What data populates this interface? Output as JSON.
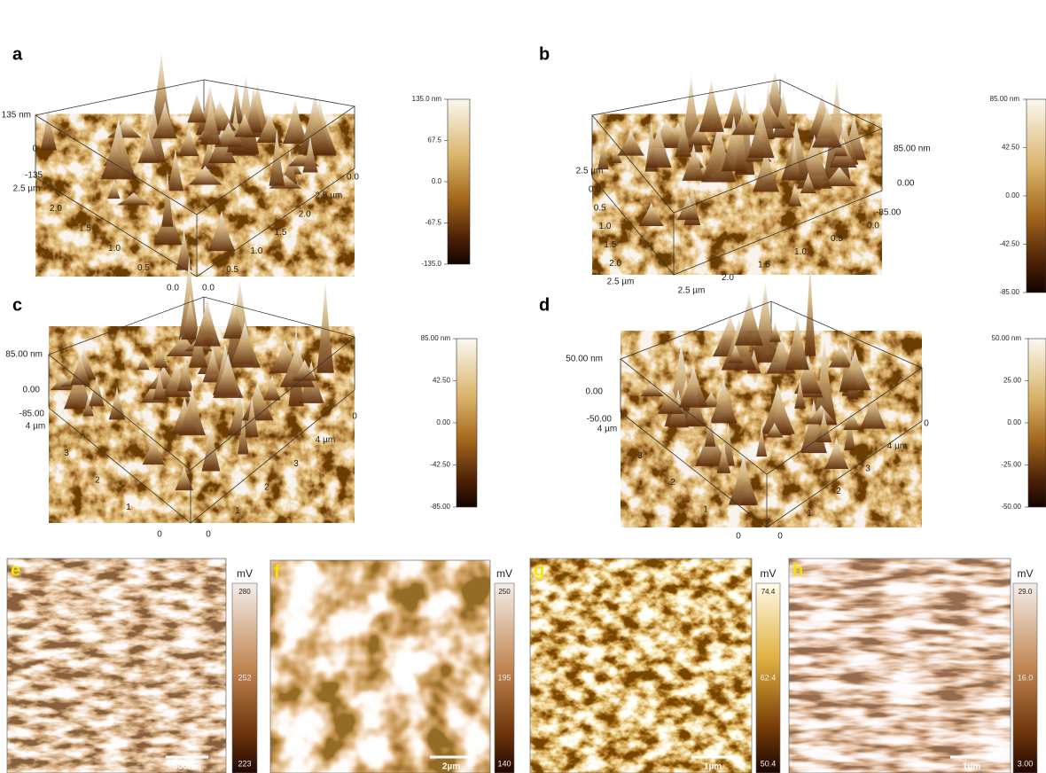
{
  "panels": [
    {
      "label": "a",
      "z_ticks": [
        "135 nm",
        "0",
        "-135"
      ],
      "left_ticks": [
        "2.5 µm",
        "2.0",
        "1.5",
        "1.0",
        "0.5",
        "0.0"
      ],
      "right_ticks": [
        "0.0",
        "0.5",
        "1.0",
        "1.5",
        "2.0",
        "2.5 µm",
        "0.0"
      ],
      "colorbar": [
        "135.0 nm",
        "67.5",
        "0.0",
        "-67.5",
        "-135.0"
      ]
    },
    {
      "label": "b",
      "z_ticks": [
        "85.00 nm",
        "0.00",
        "-85.00"
      ],
      "left_ticks": [
        "2.5 µm",
        "0.0",
        "0.5",
        "1.0",
        "1.5",
        "2.0",
        "2.5 µm"
      ],
      "right_ticks": [
        "2.5 µm",
        "2.0",
        "1.5",
        "1.0",
        "0.5",
        "0.0"
      ],
      "colorbar": [
        "85.00 nm",
        "42.50",
        "0.00",
        "-42.50",
        "-85.00"
      ]
    },
    {
      "label": "c",
      "z_ticks": [
        "85.00 nm",
        "0.00",
        "-85.00"
      ],
      "left_ticks": [
        "4 µm",
        "3",
        "2",
        "1",
        "0"
      ],
      "right_ticks": [
        "0",
        "1",
        "2",
        "3",
        "4 µm",
        "0"
      ],
      "colorbar": [
        "85.00 nm",
        "42.50",
        "0.00",
        "-42.50",
        "-85.00"
      ]
    },
    {
      "label": "d",
      "z_ticks": [
        "50.00 nm",
        "0.00",
        "-50.00"
      ],
      "left_ticks": [
        "4 µm",
        "3",
        "2",
        "1",
        "0"
      ],
      "right_ticks": [
        "0",
        "1",
        "2",
        "3",
        "4 µm",
        "0"
      ],
      "colorbar": [
        "50.00 nm",
        "25.00",
        "0.00",
        "-25.00",
        "-50.00"
      ]
    }
  ],
  "maps": [
    {
      "label": "e",
      "unit": "mV",
      "colorbar": [
        "280",
        "252",
        "223"
      ],
      "scale_bar": "500nm"
    },
    {
      "label": "f",
      "unit": "mV",
      "colorbar": [
        "250",
        "195",
        "140"
      ],
      "scale_bar": "2µm"
    },
    {
      "label": "g",
      "unit": "mV",
      "colorbar": [
        "74.4",
        "62.4",
        "50.4"
      ],
      "scale_bar": "1µm"
    },
    {
      "label": "h",
      "unit": "mV",
      "colorbar": [
        "29.0",
        "16.0",
        "3.00"
      ],
      "scale_bar": "1µm"
    }
  ]
}
